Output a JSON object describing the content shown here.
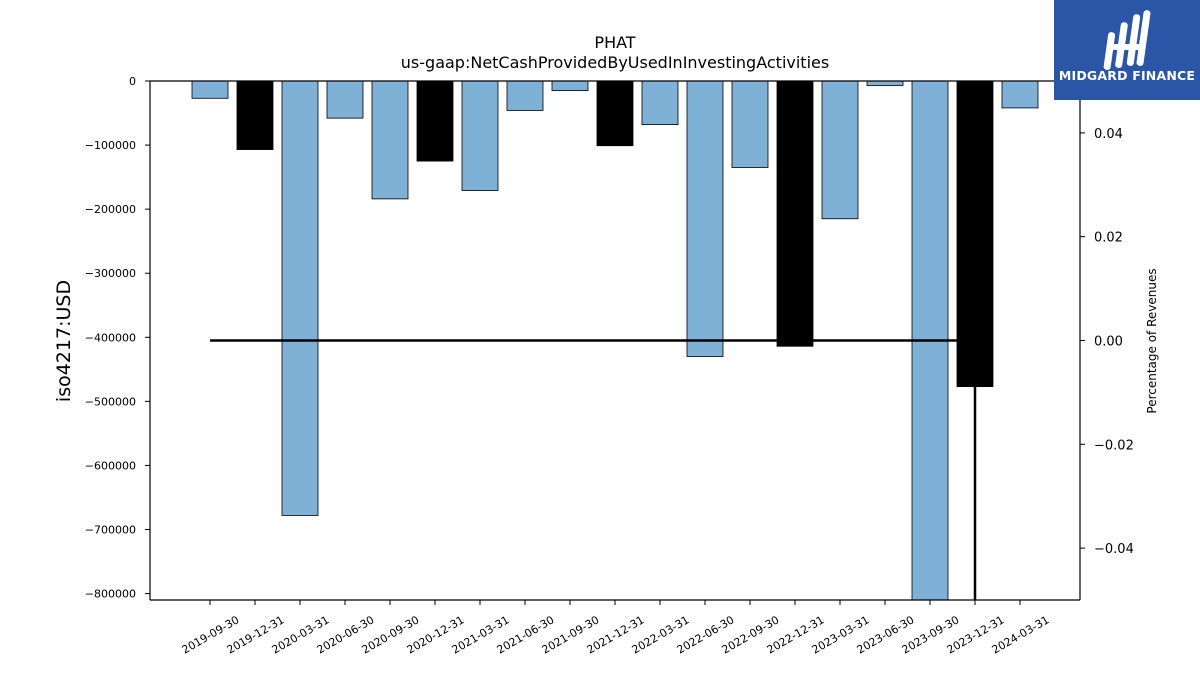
{
  "chart_data": {
    "type": "bar",
    "title": "PHAT",
    "subtitle": "us-gaap:NetCashProvidedByUsedInInvestingActivities",
    "ylabel": "iso4217:USD",
    "y2label": "Percentage of Revenues",
    "ylim": [
      -810000,
      0
    ],
    "y2lim": [
      -0.05,
      0.05
    ],
    "yticks": [
      0,
      -100000,
      -200000,
      -300000,
      -400000,
      -500000,
      -600000,
      -700000,
      -800000
    ],
    "ytick_labels": [
      "0",
      "−100000",
      "−200000",
      "−300000",
      "−400000",
      "−500000",
      "−600000",
      "−700000",
      "−800000"
    ],
    "y2ticks": [
      0.04,
      0.02,
      0.0,
      -0.02,
      -0.04
    ],
    "y2tick_labels": [
      "0.04",
      "0.02",
      "0.00",
      "−0.02",
      "−0.04"
    ],
    "categories": [
      "2019-09-30",
      "2019-12-31",
      "2020-03-31",
      "2020-06-30",
      "2020-09-30",
      "2020-12-31",
      "2021-03-31",
      "2021-06-30",
      "2021-09-30",
      "2021-12-31",
      "2022-03-31",
      "2022-06-30",
      "2022-09-30",
      "2022-12-31",
      "2023-03-31",
      "2023-06-30",
      "2023-09-30",
      "2023-12-31",
      "2024-03-31"
    ],
    "values": [
      -27000,
      -107000,
      -678000,
      -58000,
      -184000,
      -125000,
      -171000,
      -46000,
      -15000,
      -101000,
      -68000,
      -430000,
      -135000,
      -414000,
      -215000,
      -7000,
      -810000,
      -477000,
      -42000
    ],
    "bar_kinds": [
      "quarter",
      "annual",
      "quarter",
      "quarter",
      "quarter",
      "annual",
      "quarter",
      "quarter",
      "quarter",
      "annual",
      "quarter",
      "quarter",
      "quarter",
      "annual",
      "quarter",
      "quarter",
      "quarter",
      "annual",
      "quarter"
    ],
    "pct_line": {
      "x": [
        "2019-09-30",
        "2023-12-31",
        "2023-12-31"
      ],
      "values": [
        0.0,
        0.0,
        -0.05
      ]
    },
    "colors": {
      "quarter": "#7fb0d5",
      "annual": "#000000",
      "line": "#000000"
    },
    "grid": false
  },
  "logo": {
    "text": "MIDGARD FINANCE",
    "color": "#2b55a6"
  }
}
